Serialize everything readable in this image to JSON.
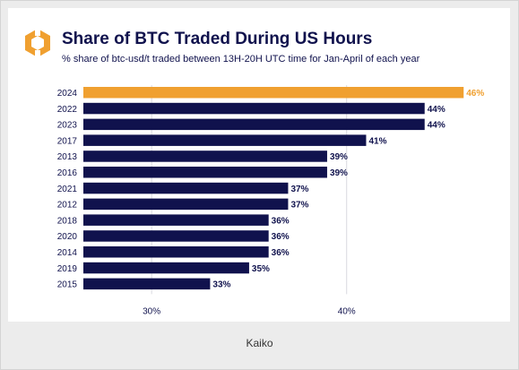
{
  "title": "Share of BTC Traded During US Hours",
  "subtitle": "% share of btc-usd/t traded between 13H-20H UTC time for Jan-April of each year",
  "caption": "Kaiko",
  "colors": {
    "bar": "#10124d",
    "highlight": "#f0a030",
    "text": "#10124d",
    "grid": "#d9d9e0",
    "logo": "#f0a030"
  },
  "chart_data": {
    "type": "bar",
    "orientation": "horizontal",
    "title": "Share of BTC Traded During US Hours",
    "subtitle": "% share of btc-usd/t traded between 13H-20H UTC time for Jan-April of each year",
    "categories": [
      "2024",
      "2022",
      "2023",
      "2017",
      "2013",
      "2016",
      "2021",
      "2012",
      "2018",
      "2020",
      "2014",
      "2019",
      "2015"
    ],
    "values": [
      46,
      44,
      44,
      41,
      39,
      39,
      37,
      37,
      36,
      36,
      36,
      35,
      33
    ],
    "value_labels": [
      "46%",
      "44%",
      "44%",
      "41%",
      "39%",
      "39%",
      "37%",
      "37%",
      "36%",
      "36%",
      "36%",
      "35%",
      "33%"
    ],
    "highlight_category": "2024",
    "x_ticks": [
      30,
      40
    ],
    "x_tick_labels": [
      "30%",
      "40%"
    ],
    "xlim": [
      26.5,
      47
    ],
    "grid": true
  }
}
